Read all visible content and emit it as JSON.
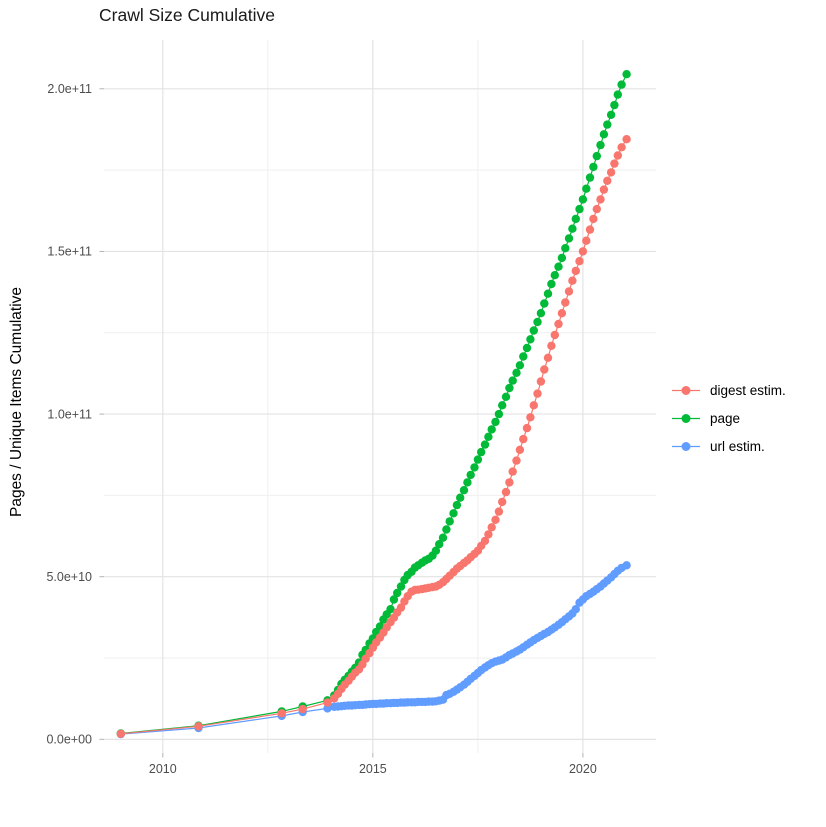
{
  "title": "Crawl Size Cumulative",
  "y_axis_title": "Pages / Unique Items Cumulative",
  "colors": {
    "digest_estim": "#F8766D",
    "page": "#00BA38",
    "url_estim": "#619CFF",
    "tick_label": "#4d4d4d",
    "tick_mark": "#b3b3b3",
    "grid_major": "#e3e3e3",
    "grid_minor": "#efefef",
    "background": "#ffffff"
  },
  "chart_data": {
    "type": "scatter",
    "title": "Crawl Size Cumulative",
    "xlabel": "",
    "ylabel": "Pages / Unique Items Cumulative",
    "legend_position": "right",
    "grid": "on",
    "unit_note": "point values stored in billions (1e9) of pages / unique items",
    "x_range": [
      2008.6,
      2021.74
    ],
    "y_range_billions": [
      -4.2,
      215
    ],
    "x_ticks": {
      "major": [
        {
          "v": 2010,
          "label": "2010"
        },
        {
          "v": 2015,
          "label": "2015"
        },
        {
          "v": 2020,
          "label": "2020"
        }
      ],
      "minor": [
        2012.5,
        2017.5
      ]
    },
    "y_ticks": {
      "major": [
        {
          "v": 0,
          "label": "0.0e+00"
        },
        {
          "v": 50,
          "label": "5.0e+10"
        },
        {
          "v": 100,
          "label": "1.0e+11"
        },
        {
          "v": 150,
          "label": "1.5e+11"
        },
        {
          "v": 200,
          "label": "2.0e+11"
        }
      ],
      "minor": [
        25,
        75,
        125,
        175
      ]
    },
    "series": [
      {
        "name": "digest estim.",
        "color": "#F8766D",
        "points": [
          [
            2009.0,
            1.7
          ],
          [
            2010.85,
            4.0
          ],
          [
            2012.83,
            8.0
          ],
          [
            2013.33,
            9.3
          ],
          [
            2013.92,
            11.3
          ],
          [
            2014.08,
            12.6
          ],
          [
            2014.17,
            14.0
          ],
          [
            2014.25,
            15.5
          ],
          [
            2014.33,
            16.8
          ],
          [
            2014.42,
            18.0
          ],
          [
            2014.5,
            19.3
          ],
          [
            2014.58,
            20.5
          ],
          [
            2014.67,
            21.5
          ],
          [
            2014.75,
            23.0
          ],
          [
            2014.83,
            24.8
          ],
          [
            2014.92,
            26.5
          ],
          [
            2015.0,
            28.2
          ],
          [
            2015.08,
            29.8
          ],
          [
            2015.17,
            31.3
          ],
          [
            2015.25,
            32.8
          ],
          [
            2015.33,
            34.4
          ],
          [
            2015.42,
            36.0
          ],
          [
            2015.5,
            37.4
          ],
          [
            2015.58,
            39.0
          ],
          [
            2015.67,
            40.5
          ],
          [
            2015.75,
            42.4
          ],
          [
            2015.83,
            44.0
          ],
          [
            2015.92,
            45.4
          ],
          [
            2016.0,
            45.9
          ],
          [
            2016.08,
            46.0
          ],
          [
            2016.17,
            46.2
          ],
          [
            2016.25,
            46.4
          ],
          [
            2016.33,
            46.6
          ],
          [
            2016.42,
            46.8
          ],
          [
            2016.5,
            47.0
          ],
          [
            2016.58,
            47.5
          ],
          [
            2016.67,
            48.3
          ],
          [
            2016.75,
            49.3
          ],
          [
            2016.83,
            50.3
          ],
          [
            2016.92,
            51.4
          ],
          [
            2017.0,
            52.5
          ],
          [
            2017.08,
            53.3
          ],
          [
            2017.17,
            54.2
          ],
          [
            2017.25,
            55.0
          ],
          [
            2017.33,
            56.0
          ],
          [
            2017.42,
            57.0
          ],
          [
            2017.5,
            58.0
          ],
          [
            2017.58,
            59.5
          ],
          [
            2017.67,
            61.0
          ],
          [
            2017.75,
            63.0
          ],
          [
            2017.83,
            65.2
          ],
          [
            2017.92,
            67.5
          ],
          [
            2018.0,
            70.0
          ],
          [
            2018.08,
            73.0
          ],
          [
            2018.17,
            76.0
          ],
          [
            2018.25,
            79.0
          ],
          [
            2018.33,
            82.3
          ],
          [
            2018.42,
            85.7
          ],
          [
            2018.5,
            89.0
          ],
          [
            2018.58,
            92.3
          ],
          [
            2018.67,
            95.7
          ],
          [
            2018.75,
            99.0
          ],
          [
            2018.83,
            102.7
          ],
          [
            2018.92,
            106.3
          ],
          [
            2019.0,
            110.0
          ],
          [
            2019.08,
            113.7
          ],
          [
            2019.17,
            117.3
          ],
          [
            2019.25,
            121.0
          ],
          [
            2019.33,
            124.3
          ],
          [
            2019.42,
            127.7
          ],
          [
            2019.5,
            131.0
          ],
          [
            2019.58,
            134.3
          ],
          [
            2019.67,
            137.7
          ],
          [
            2019.75,
            141.0
          ],
          [
            2019.83,
            144.0
          ],
          [
            2019.92,
            147.0
          ],
          [
            2020.0,
            150.0
          ],
          [
            2020.08,
            153.3
          ],
          [
            2020.17,
            156.7
          ],
          [
            2020.25,
            160.0
          ],
          [
            2020.33,
            163.0
          ],
          [
            2020.42,
            166.0
          ],
          [
            2020.5,
            169.0
          ],
          [
            2020.58,
            171.7
          ],
          [
            2020.67,
            174.3
          ],
          [
            2020.75,
            177.0
          ],
          [
            2020.83,
            179.5
          ],
          [
            2020.92,
            182.0
          ],
          [
            2021.04,
            184.5
          ]
        ]
      },
      {
        "name": "page",
        "color": "#00BA38",
        "points": [
          [
            2009.0,
            1.8
          ],
          [
            2010.85,
            4.2
          ],
          [
            2012.83,
            8.6
          ],
          [
            2013.33,
            10.1
          ],
          [
            2013.92,
            12.0
          ],
          [
            2014.08,
            13.5
          ],
          [
            2014.17,
            15.2
          ],
          [
            2014.25,
            17.0
          ],
          [
            2014.33,
            18.3
          ],
          [
            2014.42,
            19.5
          ],
          [
            2014.5,
            20.8
          ],
          [
            2014.58,
            22.0
          ],
          [
            2014.67,
            23.6
          ],
          [
            2014.75,
            26.0
          ],
          [
            2014.83,
            27.5
          ],
          [
            2014.92,
            29.5
          ],
          [
            2015.0,
            31.0
          ],
          [
            2015.08,
            33.0
          ],
          [
            2015.17,
            34.7
          ],
          [
            2015.25,
            36.8
          ],
          [
            2015.33,
            38.4
          ],
          [
            2015.42,
            40.0
          ],
          [
            2015.5,
            43.0
          ],
          [
            2015.58,
            45.0
          ],
          [
            2015.67,
            47.0
          ],
          [
            2015.75,
            49.0
          ],
          [
            2015.83,
            50.5
          ],
          [
            2015.92,
            51.5
          ],
          [
            2016.0,
            52.8
          ],
          [
            2016.08,
            53.5
          ],
          [
            2016.17,
            54.3
          ],
          [
            2016.25,
            55.0
          ],
          [
            2016.33,
            55.5
          ],
          [
            2016.42,
            56.5
          ],
          [
            2016.5,
            58.0
          ],
          [
            2016.58,
            60.0
          ],
          [
            2016.67,
            62.0
          ],
          [
            2016.75,
            64.5
          ],
          [
            2016.83,
            67.0
          ],
          [
            2016.92,
            69.5
          ],
          [
            2017.0,
            72.0
          ],
          [
            2017.08,
            74.3
          ],
          [
            2017.17,
            76.6
          ],
          [
            2017.25,
            79.0
          ],
          [
            2017.33,
            81.3
          ],
          [
            2017.42,
            83.6
          ],
          [
            2017.5,
            86.0
          ],
          [
            2017.58,
            88.3
          ],
          [
            2017.67,
            90.6
          ],
          [
            2017.75,
            93.0
          ],
          [
            2017.83,
            95.3
          ],
          [
            2017.92,
            97.6
          ],
          [
            2018.0,
            100.0
          ],
          [
            2018.08,
            102.7
          ],
          [
            2018.17,
            105.3
          ],
          [
            2018.25,
            108.0
          ],
          [
            2018.33,
            110.3
          ],
          [
            2018.42,
            112.7
          ],
          [
            2018.5,
            115.0
          ],
          [
            2018.58,
            117.7
          ],
          [
            2018.67,
            120.3
          ],
          [
            2018.75,
            123.0
          ],
          [
            2018.83,
            125.7
          ],
          [
            2018.92,
            128.3
          ],
          [
            2019.0,
            131.0
          ],
          [
            2019.08,
            134.0
          ],
          [
            2019.17,
            137.0
          ],
          [
            2019.25,
            140.0
          ],
          [
            2019.33,
            142.7
          ],
          [
            2019.42,
            145.3
          ],
          [
            2019.5,
            148.0
          ],
          [
            2019.58,
            151.0
          ],
          [
            2019.67,
            154.0
          ],
          [
            2019.75,
            157.0
          ],
          [
            2019.83,
            160.0
          ],
          [
            2019.92,
            163.0
          ],
          [
            2020.0,
            166.0
          ],
          [
            2020.08,
            169.3
          ],
          [
            2020.17,
            172.7
          ],
          [
            2020.25,
            176.0
          ],
          [
            2020.33,
            179.3
          ],
          [
            2020.42,
            182.7
          ],
          [
            2020.5,
            186.0
          ],
          [
            2020.58,
            189.0
          ],
          [
            2020.67,
            192.0
          ],
          [
            2020.75,
            195.0
          ],
          [
            2020.83,
            198.2
          ],
          [
            2020.92,
            201.3
          ],
          [
            2021.04,
            204.5
          ]
        ]
      },
      {
        "name": "url estim.",
        "color": "#619CFF",
        "points": [
          [
            2009.0,
            1.6
          ],
          [
            2010.85,
            3.5
          ],
          [
            2012.83,
            7.2
          ],
          [
            2013.33,
            8.4
          ],
          [
            2013.92,
            9.5
          ],
          [
            2014.08,
            10.0
          ],
          [
            2014.17,
            10.1
          ],
          [
            2014.25,
            10.2
          ],
          [
            2014.33,
            10.3
          ],
          [
            2014.42,
            10.4
          ],
          [
            2014.5,
            10.4
          ],
          [
            2014.58,
            10.5
          ],
          [
            2014.67,
            10.6
          ],
          [
            2014.75,
            10.6
          ],
          [
            2014.83,
            10.7
          ],
          [
            2014.92,
            10.8
          ],
          [
            2015.0,
            10.9
          ],
          [
            2015.08,
            10.9
          ],
          [
            2015.17,
            11.0
          ],
          [
            2015.25,
            11.0
          ],
          [
            2015.33,
            11.1
          ],
          [
            2015.42,
            11.1
          ],
          [
            2015.5,
            11.2
          ],
          [
            2015.58,
            11.2
          ],
          [
            2015.67,
            11.3
          ],
          [
            2015.75,
            11.3
          ],
          [
            2015.83,
            11.4
          ],
          [
            2015.92,
            11.4
          ],
          [
            2016.0,
            11.4
          ],
          [
            2016.08,
            11.5
          ],
          [
            2016.17,
            11.5
          ],
          [
            2016.25,
            11.5
          ],
          [
            2016.33,
            11.6
          ],
          [
            2016.42,
            11.6
          ],
          [
            2016.5,
            11.7
          ],
          [
            2016.58,
            11.9
          ],
          [
            2016.67,
            12.2
          ],
          [
            2016.75,
            13.6
          ],
          [
            2016.83,
            14.0
          ],
          [
            2016.92,
            14.6
          ],
          [
            2017.0,
            15.3
          ],
          [
            2017.08,
            16.0
          ],
          [
            2017.17,
            16.8
          ],
          [
            2017.25,
            17.7
          ],
          [
            2017.33,
            18.6
          ],
          [
            2017.42,
            19.5
          ],
          [
            2017.5,
            20.4
          ],
          [
            2017.58,
            21.3
          ],
          [
            2017.67,
            22.1
          ],
          [
            2017.75,
            22.8
          ],
          [
            2017.83,
            23.4
          ],
          [
            2017.92,
            23.9
          ],
          [
            2018.0,
            24.2
          ],
          [
            2018.08,
            24.5
          ],
          [
            2018.17,
            25.2
          ],
          [
            2018.25,
            25.9
          ],
          [
            2018.33,
            26.4
          ],
          [
            2018.42,
            27.0
          ],
          [
            2018.5,
            27.6
          ],
          [
            2018.58,
            28.3
          ],
          [
            2018.67,
            29.1
          ],
          [
            2018.75,
            29.8
          ],
          [
            2018.83,
            30.5
          ],
          [
            2018.92,
            31.2
          ],
          [
            2019.0,
            31.8
          ],
          [
            2019.08,
            32.4
          ],
          [
            2019.17,
            33.0
          ],
          [
            2019.25,
            33.7
          ],
          [
            2019.33,
            34.4
          ],
          [
            2019.42,
            35.2
          ],
          [
            2019.5,
            36.0
          ],
          [
            2019.58,
            36.9
          ],
          [
            2019.67,
            37.8
          ],
          [
            2019.75,
            38.7
          ],
          [
            2019.83,
            40.0
          ],
          [
            2019.92,
            42.0
          ],
          [
            2020.0,
            43.0
          ],
          [
            2020.08,
            44.0
          ],
          [
            2020.17,
            44.7
          ],
          [
            2020.25,
            45.4
          ],
          [
            2020.33,
            46.2
          ],
          [
            2020.42,
            47.0
          ],
          [
            2020.5,
            47.9
          ],
          [
            2020.58,
            48.8
          ],
          [
            2020.67,
            49.8
          ],
          [
            2020.75,
            50.8
          ],
          [
            2020.83,
            51.8
          ],
          [
            2020.92,
            52.7
          ],
          [
            2021.04,
            53.5
          ]
        ]
      }
    ]
  }
}
